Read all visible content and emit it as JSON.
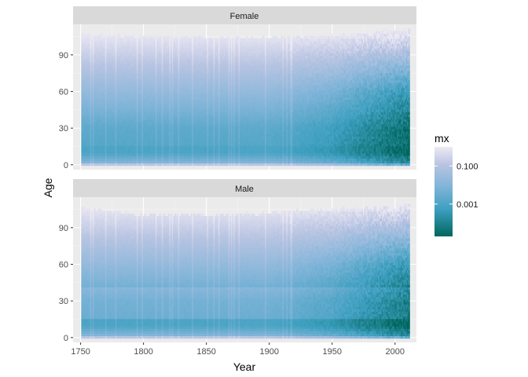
{
  "chart_data": {
    "type": "heatmap",
    "xlabel": "Year",
    "ylabel": "Age",
    "x_ticks": [
      1750,
      1800,
      1850,
      1900,
      1950,
      2000
    ],
    "y_ticks": [
      0,
      30,
      60,
      90
    ],
    "xlim": [
      1744,
      2017
    ],
    "ylim": [
      -4,
      115
    ],
    "year_range": [
      1751,
      2011
    ],
    "facets": [
      {
        "label": "Female",
        "max_age_by_year": [
          {
            "year": 1751,
            "max_age": 105
          },
          {
            "year": 1800,
            "max_age": 104
          },
          {
            "year": 1850,
            "max_age": 103
          },
          {
            "year": 1900,
            "max_age": 103
          },
          {
            "year": 1950,
            "max_age": 105
          },
          {
            "year": 2011,
            "max_age": 110
          }
        ]
      },
      {
        "label": "Male",
        "max_age_by_year": [
          {
            "year": 1751,
            "max_age": 105
          },
          {
            "year": 1800,
            "max_age": 99
          },
          {
            "year": 1850,
            "max_age": 99
          },
          {
            "year": 1900,
            "max_age": 101
          },
          {
            "year": 1950,
            "max_age": 104
          },
          {
            "year": 2011,
            "max_age": 107
          }
        ]
      }
    ],
    "legend": {
      "title": "mx",
      "scale": "log",
      "ticks": [
        {
          "label": "0.100",
          "value": 0.1
        },
        {
          "label": "0.001",
          "value": 0.001
        }
      ],
      "range": [
        2e-05,
        1.0
      ],
      "colors": [
        "#01665e",
        "#3d9fbf",
        "#7fb4d8",
        "#b8c4e2",
        "#ede9f3"
      ],
      "position": "right"
    }
  }
}
